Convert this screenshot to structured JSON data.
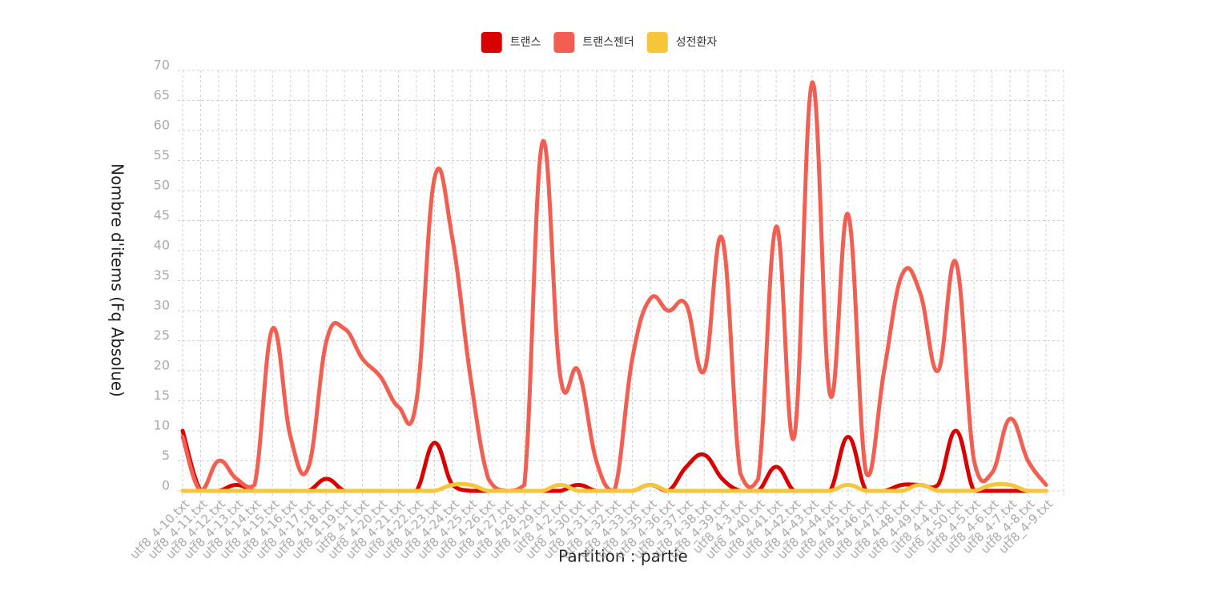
{
  "chart_data": {
    "type": "line",
    "x_label": "Partition : partie",
    "y_label": "Nombre d'items (Fq Absolue)",
    "categories": [
      "utf8_4-10.txt",
      "utf8_4-11.txt",
      "utf8_4-12.txt",
      "utf8_4-13.txt",
      "utf8_4-14.txt",
      "utf8_4-15.txt",
      "utf8_4-16.txt",
      "utf8_4-17.txt",
      "utf8_4-18.txt",
      "utf8_4-19.txt",
      "utf8_4-1.txt",
      "utf8_4-20.txt",
      "utf8_4-21.txt",
      "utf8_4-22.txt",
      "utf8_4-23.txt",
      "utf8_4-24.txt",
      "utf8_4-25.txt",
      "utf8_4-26.txt",
      "utf8_4-27.txt",
      "utf8_4-28.txt",
      "utf8_4-29.txt",
      "utf8_4-2.txt",
      "utf8_4-30.txt",
      "utf8_4-31.txt",
      "utf8_4-32.txt",
      "utf8_4-33.txt",
      "utf8_4-35.txt",
      "utf8_4-36.txt",
      "utf8_4-37.txt",
      "utf8_4-38.txt",
      "utf8_4-39.txt",
      "utf8_4-3.txt",
      "utf8_4-40.txt",
      "utf8_4-41.txt",
      "utf8_4-42.txt",
      "utf8_4-43.txt",
      "utf8_4-44.txt",
      "utf8_4-45.txt",
      "utf8_4-46.txt",
      "utf8_4-47.txt",
      "utf8_4-48.txt",
      "utf8_4-49.txt",
      "utf8_4-4.txt",
      "utf8_4-50.txt",
      "utf8_4-5.txt",
      "utf8_4-6.txt",
      "utf8_4-7.txt",
      "utf8_4-8.txt",
      "utf8_4-9.txt"
    ],
    "series": [
      {
        "name": "트랜스",
        "color": "#d90000",
        "values": [
          10,
          0,
          0,
          1,
          0,
          0,
          0,
          0,
          2,
          0,
          0,
          0,
          0,
          0,
          8,
          1,
          0,
          0,
          0,
          0,
          0,
          0,
          1,
          0,
          0,
          0,
          1,
          0,
          4,
          6,
          2,
          0,
          0,
          4,
          0,
          0,
          0,
          9,
          0,
          0,
          1,
          1,
          1,
          10,
          0,
          0,
          0,
          0,
          0
        ]
      },
      {
        "name": "트랜스젠더",
        "color": "#f05f52",
        "values": [
          9,
          0,
          5,
          2,
          1,
          27,
          9,
          4,
          25,
          27,
          22,
          19,
          14,
          15,
          52,
          42,
          19,
          2,
          0,
          1,
          58,
          19,
          20,
          5,
          0,
          22,
          32,
          30,
          31,
          20,
          42,
          3,
          2,
          44,
          9,
          68,
          16,
          46,
          3,
          20,
          36,
          33,
          20,
          38,
          5,
          3,
          12,
          5,
          1
        ]
      },
      {
        "name": "성전환자",
        "color": "#f5c53a",
        "values": [
          0,
          0,
          0,
          0,
          0,
          0,
          0,
          0,
          0,
          0,
          0,
          0,
          0,
          0,
          0,
          1,
          1,
          0,
          0,
          0,
          0,
          1,
          0,
          0,
          0,
          0,
          1,
          0,
          0,
          0,
          0,
          0,
          0,
          0,
          0,
          0,
          0,
          1,
          0,
          0,
          0,
          1,
          0,
          0,
          0,
          1,
          1,
          0,
          0
        ]
      }
    ],
    "ylim": [
      0,
      70
    ],
    "yticks": [
      0,
      5,
      10,
      15,
      20,
      25,
      30,
      35,
      40,
      45,
      50,
      55,
      60,
      65,
      70
    ],
    "grid": true,
    "legend": "top"
  }
}
